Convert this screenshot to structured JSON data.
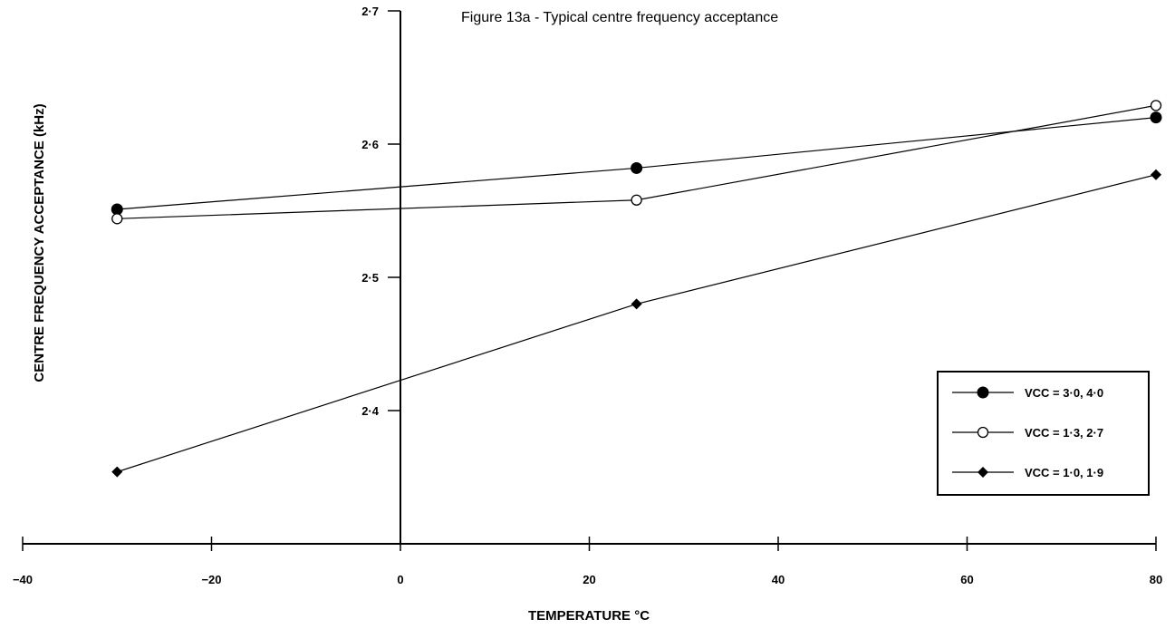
{
  "chart_data": {
    "type": "line",
    "title": "Figure 13a - Typical centre frequency acceptance",
    "xlabel": "TEMPERATURE °C",
    "ylabel": "CENTRE FREQUENCY ACCEPTANCE (kHz)",
    "xlim": [
      -40,
      80
    ],
    "ylim": [
      2.3,
      2.7
    ],
    "x_ticks": [
      -40,
      -20,
      0,
      20,
      40,
      60,
      80
    ],
    "x_tick_labels": [
      "−40",
      "−20",
      "0",
      "20",
      "40",
      "60",
      "80"
    ],
    "y_ticks": [
      2.4,
      2.5,
      2.6,
      2.7
    ],
    "y_tick_labels": [
      "2·4",
      "2·5",
      "2·6",
      "2·7"
    ],
    "x": [
      -30,
      25,
      80
    ],
    "grid": false,
    "legend_position": "bottom-right",
    "series": [
      {
        "name": "VCC = 3·0, 4·0",
        "marker": "filled-circle",
        "values": [
          2.551,
          2.582,
          2.62
        ]
      },
      {
        "name": "VCC = 1·3, 2·7",
        "marker": "open-circle",
        "values": [
          2.544,
          2.558,
          2.629
        ]
      },
      {
        "name": "VCC = 1·0, 1·9",
        "marker": "filled-diamond",
        "values": [
          2.354,
          2.48,
          2.577
        ]
      }
    ]
  }
}
